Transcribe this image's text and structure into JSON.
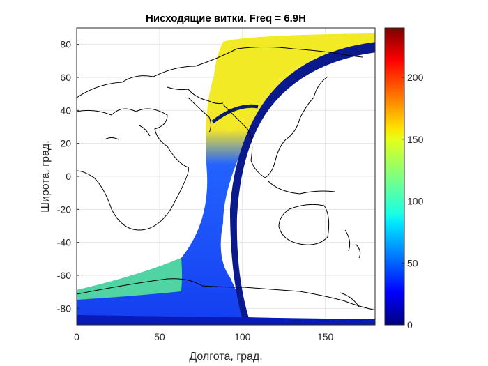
{
  "chart_data": {
    "type": "heatmap",
    "title": "Нисходящие витки. Freq = 6.9H",
    "xlabel": "Долгота, град.",
    "ylabel": "Широта, град.",
    "xlim": [
      0,
      180
    ],
    "ylim": [
      -90,
      90
    ],
    "x_ticks": [
      "0",
      "50",
      "100",
      "150"
    ],
    "x_tick_values": [
      0,
      50,
      100,
      150
    ],
    "y_ticks": [
      "-80",
      "-60",
      "-40",
      "-20",
      "0",
      "20",
      "40",
      "60",
      "80"
    ],
    "y_tick_values": [
      -80,
      -60,
      -40,
      -20,
      0,
      20,
      40,
      60,
      80
    ],
    "grid": true,
    "colormap": "jet",
    "colorbar": {
      "range": [
        0,
        240
      ],
      "ticks": [
        "0",
        "50",
        "100",
        "150",
        "200"
      ],
      "tick_values": [
        0,
        50,
        100,
        150,
        200
      ],
      "placement": "right"
    },
    "band": {
      "description": "descending orbit ground-track density",
      "center_track": [
        {
          "lat": 85,
          "lon": 88,
          "value": 145
        },
        {
          "lat": 60,
          "lon": 90,
          "value": 140
        },
        {
          "lat": 40,
          "lon": 86,
          "value": 150
        },
        {
          "lat": 20,
          "lon": 84,
          "value": 135
        },
        {
          "lat": 0,
          "lon": 85,
          "value": 30
        },
        {
          "lat": -20,
          "lon": 86,
          "value": 30
        },
        {
          "lat": -40,
          "lon": 80,
          "value": 35
        },
        {
          "lat": -60,
          "lon": 65,
          "value": 45
        },
        {
          "lat": -70,
          "lon": 40,
          "value": 75
        },
        {
          "lat": -85,
          "lon": 80,
          "value": 10
        }
      ]
    }
  }
}
